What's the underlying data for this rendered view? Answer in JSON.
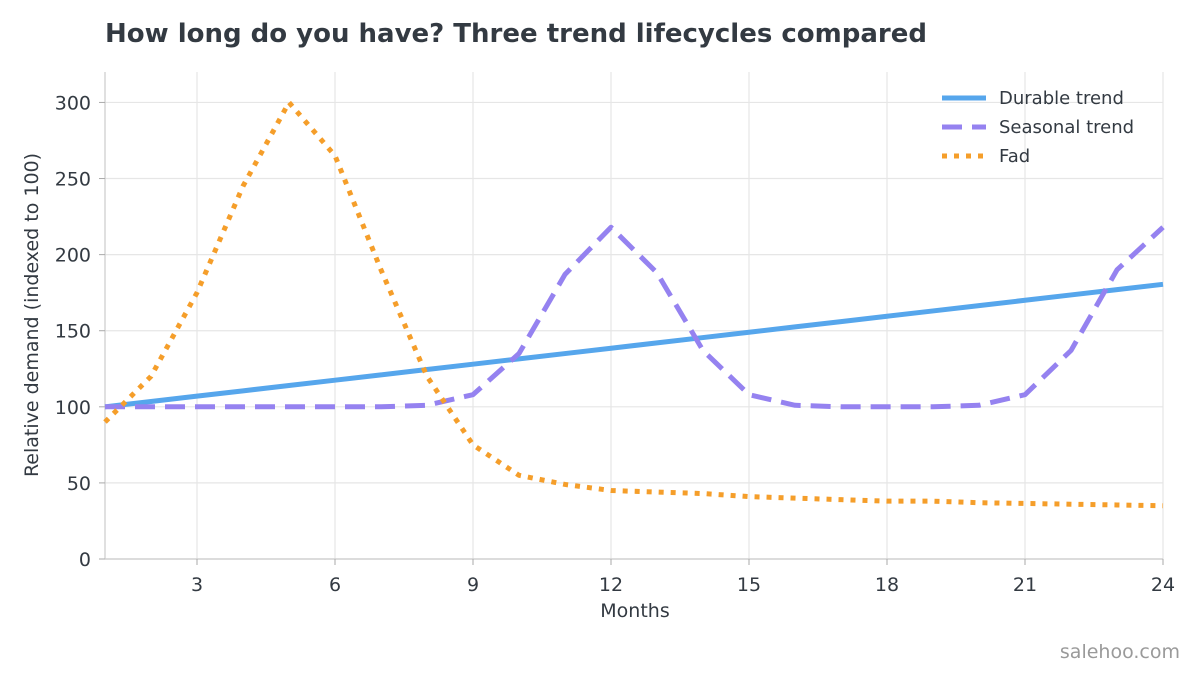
{
  "chart_data": {
    "type": "line",
    "title": "How long do you have? Three trend lifecycles compared",
    "xlabel": "Months",
    "ylabel": "Relative demand (indexed to 100)",
    "xlim": [
      1,
      24
    ],
    "ylim": [
      0,
      320
    ],
    "xticks": [
      3,
      6,
      9,
      12,
      15,
      18,
      21,
      24
    ],
    "yticks": [
      0,
      50,
      100,
      150,
      200,
      250,
      300
    ],
    "grid": true,
    "legend_position": "top-right",
    "x": [
      1,
      2,
      3,
      4,
      5,
      6,
      7,
      8,
      9,
      10,
      11,
      12,
      13,
      14,
      15,
      16,
      17,
      18,
      19,
      20,
      21,
      22,
      23,
      24
    ],
    "series": [
      {
        "name": "Durable trend",
        "style": "solid",
        "color": "#56a6ec",
        "values": [
          100,
          103.5,
          107,
          110.5,
          114,
          117.5,
          121,
          124.5,
          128,
          131.5,
          135,
          138.5,
          142,
          145.5,
          149,
          152.5,
          156,
          159.5,
          163,
          166.5,
          170,
          173.5,
          177,
          180.5
        ]
      },
      {
        "name": "Seasonal trend",
        "style": "dashed",
        "color": "#9582f0",
        "values": [
          100,
          100,
          100,
          100,
          100,
          100,
          100,
          101,
          108,
          135,
          187,
          218,
          188,
          137,
          108,
          101,
          100,
          100,
          100,
          101,
          108,
          137,
          190,
          218
        ]
      },
      {
        "name": "Fad",
        "style": "dotted",
        "color": "#f59e2a",
        "values": [
          90,
          120,
          175,
          245,
          300,
          265,
          190,
          120,
          75,
          55,
          49,
          45,
          44,
          43,
          41,
          40,
          39,
          38,
          38,
          37,
          36.5,
          36,
          35.5,
          35
        ]
      }
    ]
  },
  "watermark": "salehoo.com"
}
